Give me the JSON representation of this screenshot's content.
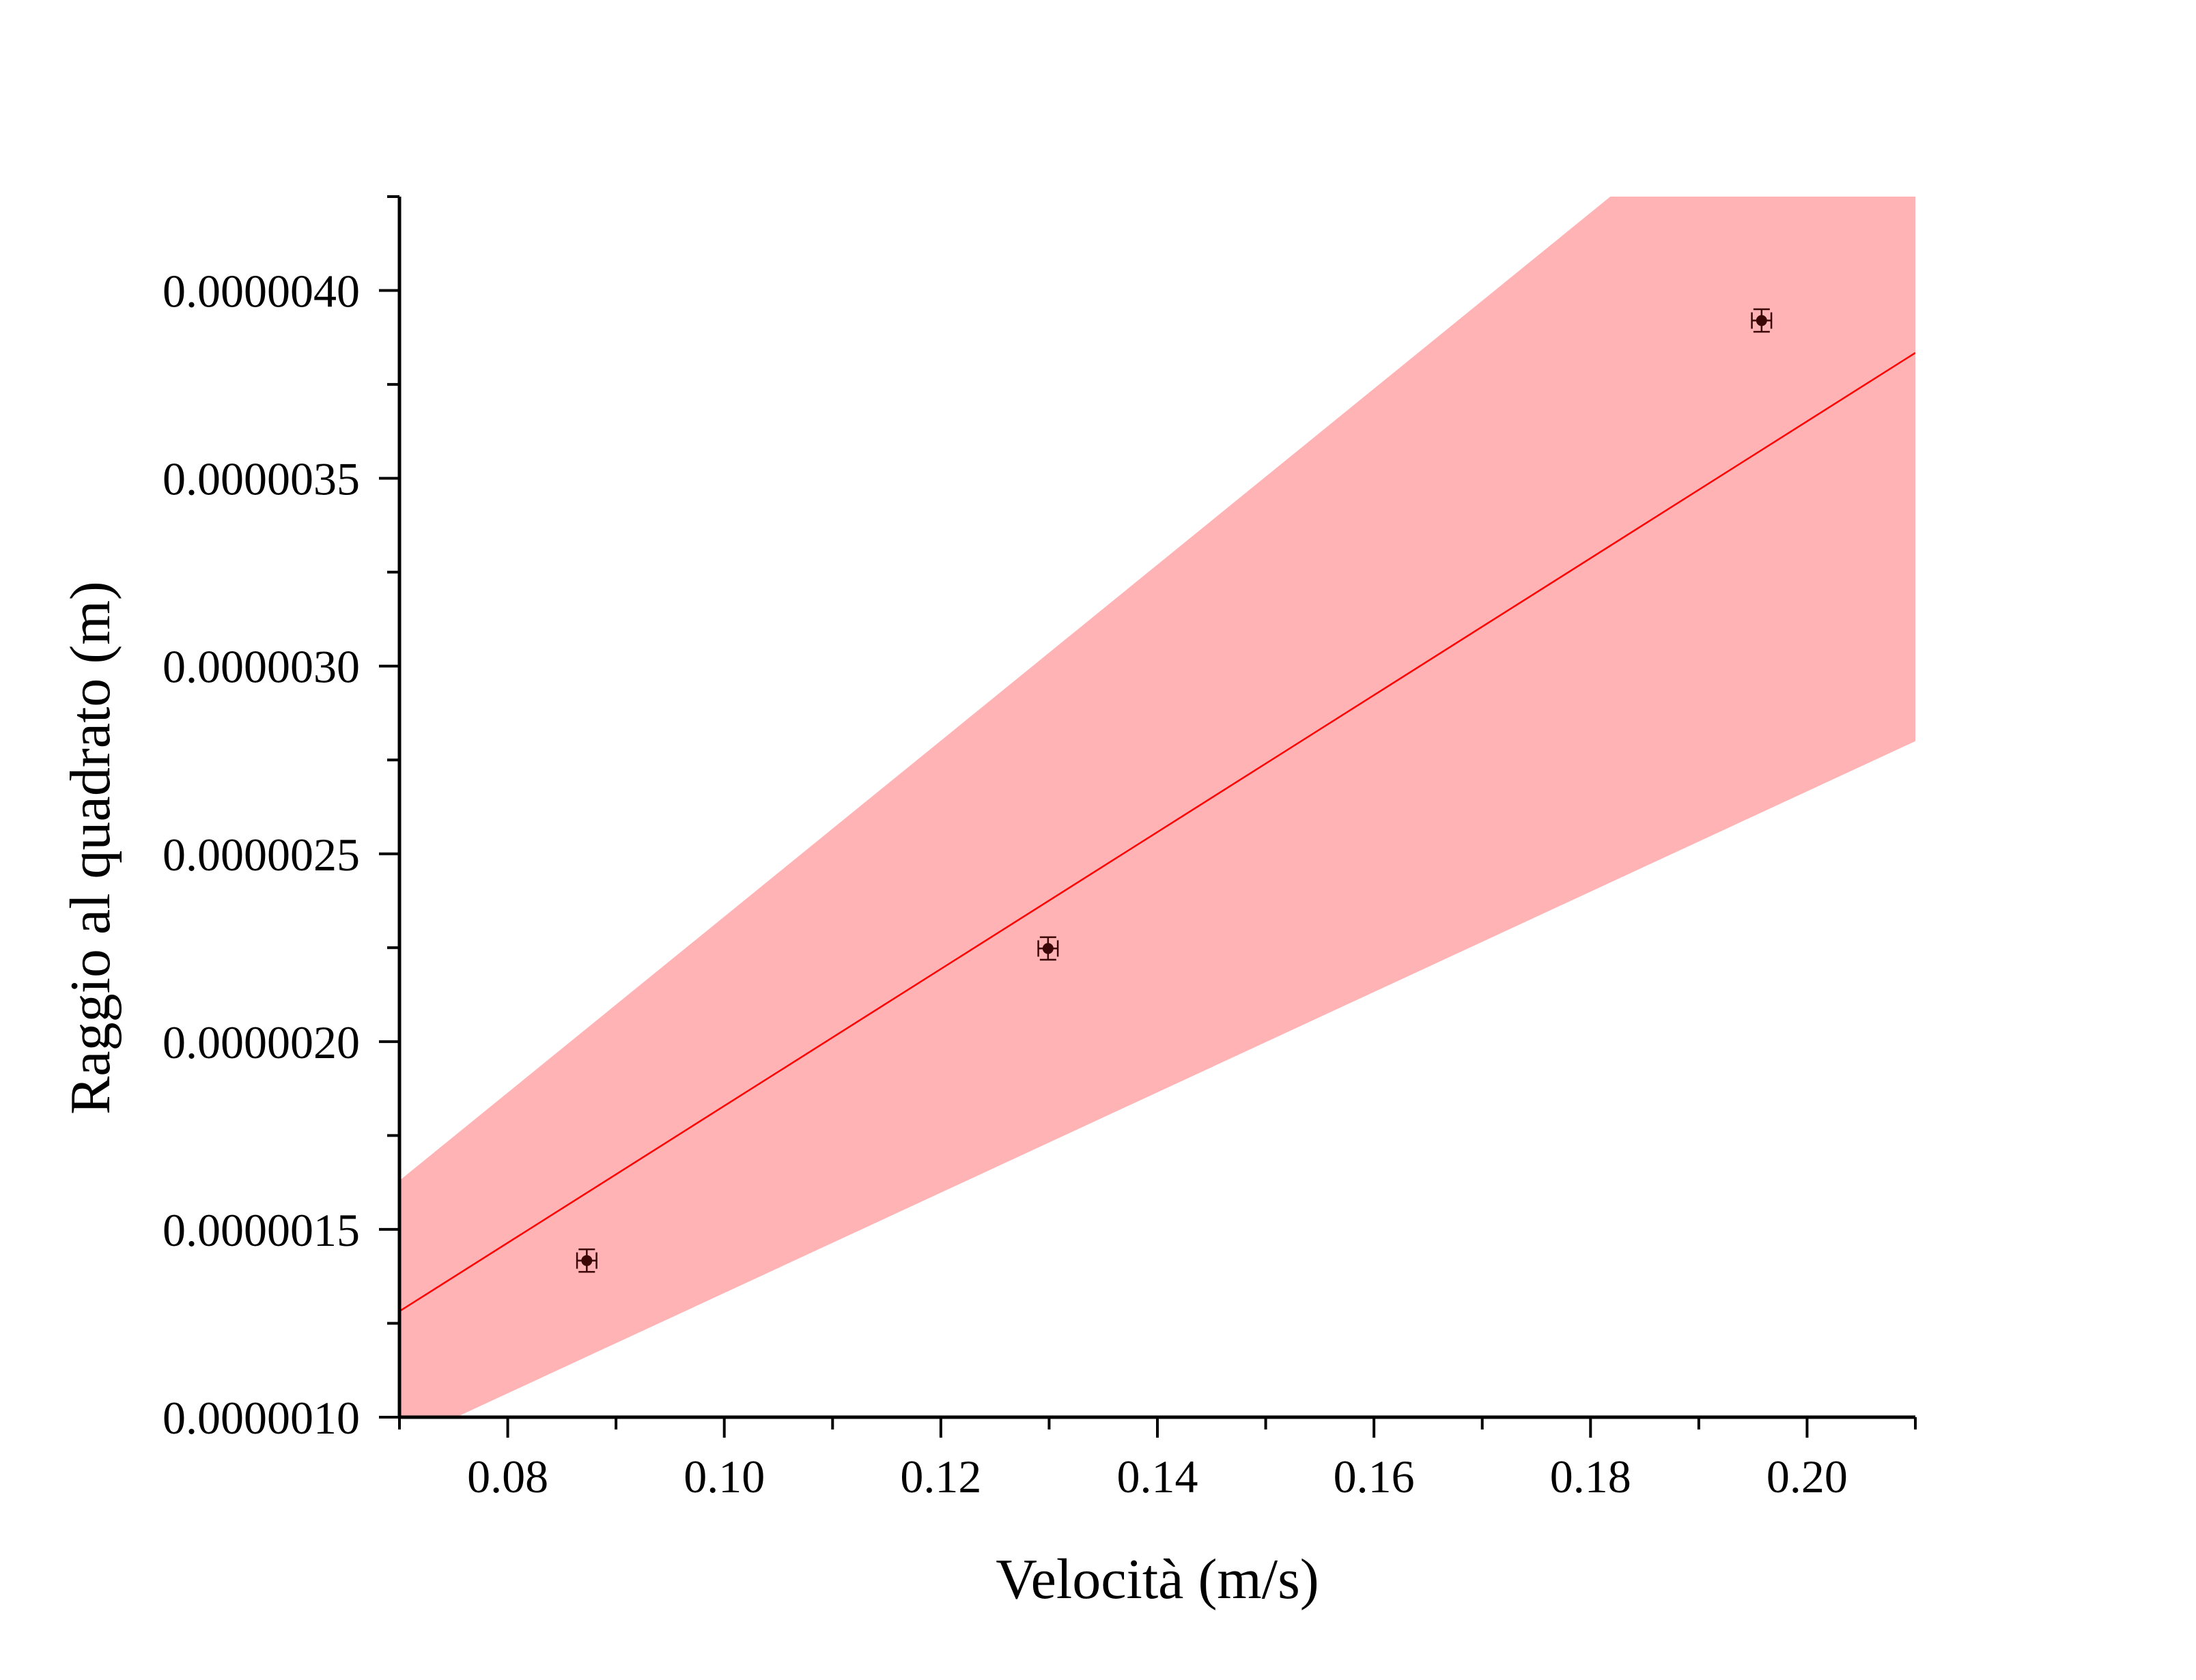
{
  "chart_data": {
    "type": "scatter",
    "xlabel": "Velocità (m/s)",
    "ylabel": "Raggio al quadrato (m)",
    "xlim": [
      0.07,
      0.21
    ],
    "ylim": [
      1e-06,
      4.25e-06
    ],
    "x_ticks": [
      0.08,
      0.1,
      0.12,
      0.14,
      0.16,
      0.18,
      0.2
    ],
    "x_tick_labels": [
      "0.08",
      "0.10",
      "0.12",
      "0.14",
      "0.16",
      "0.18",
      "0.20"
    ],
    "y_ticks": [
      1e-06,
      1.5e-06,
      2e-06,
      2.5e-06,
      3e-06,
      3.5e-06,
      4e-06
    ],
    "y_tick_labels": [
      "0.0000010",
      "0.0000015",
      "0.0000020",
      "0.0000025",
      "0.0000030",
      "0.0000035",
      "0.0000040"
    ],
    "grid": false,
    "points": [
      {
        "x": 0.0873,
        "y": 1.417e-06,
        "xerr": 0.0009,
        "yerr": 3e-08
      },
      {
        "x": 0.1299,
        "y": 2.248e-06,
        "xerr": 0.0009,
        "yerr": 3e-08
      },
      {
        "x": 0.1958,
        "y": 3.92e-06,
        "xerr": 0.0009,
        "yerr": 3e-08
      }
    ],
    "fit_line": {
      "x": [
        0.07,
        0.21
      ],
      "y": [
        1.282e-06,
        3.834e-06
      ]
    },
    "confidence_band": {
      "x": [
        0.07,
        0.21
      ],
      "upper": [
        1.63e-06,
        4.91e-06
      ],
      "lower": [
        9.3e-07,
        2.8e-06
      ]
    },
    "colors": {
      "point": "#3a0606",
      "fit_line": "#ff0000",
      "band": "#ffb3b5",
      "axis": "#000000"
    }
  }
}
